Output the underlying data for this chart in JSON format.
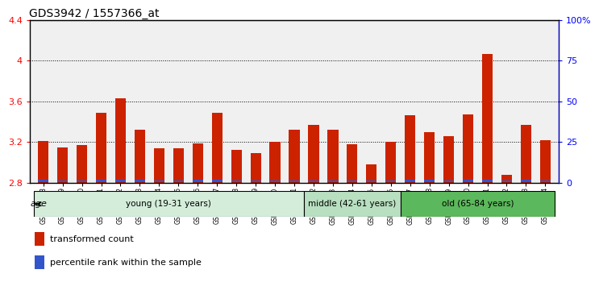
{
  "title": "GDS3942 / 1557366_at",
  "samples": [
    "GSM812988",
    "GSM812989",
    "GSM812990",
    "GSM812991",
    "GSM812992",
    "GSM812993",
    "GSM812994",
    "GSM812995",
    "GSM812996",
    "GSM812997",
    "GSM812998",
    "GSM812999",
    "GSM813000",
    "GSM813001",
    "GSM813002",
    "GSM813003",
    "GSM813004",
    "GSM813005",
    "GSM813006",
    "GSM813007",
    "GSM813008",
    "GSM813009",
    "GSM813010",
    "GSM813011",
    "GSM813012",
    "GSM813013",
    "GSM813014"
  ],
  "red_values": [
    3.21,
    3.15,
    3.17,
    3.49,
    3.63,
    3.32,
    3.14,
    3.14,
    3.19,
    3.49,
    3.12,
    3.09,
    3.2,
    3.32,
    3.37,
    3.32,
    3.18,
    2.98,
    3.2,
    3.46,
    3.3,
    3.26,
    3.47,
    4.07,
    2.88,
    3.37,
    3.22
  ],
  "blue_heights": [
    0.022,
    0.018,
    0.02,
    0.025,
    0.025,
    0.022,
    0.02,
    0.018,
    0.022,
    0.022,
    0.015,
    0.015,
    0.018,
    0.02,
    0.018,
    0.018,
    0.018,
    0.015,
    0.018,
    0.025,
    0.022,
    0.02,
    0.022,
    0.022,
    0.02,
    0.022,
    0.018
  ],
  "base": 2.8,
  "ylim_left": [
    2.8,
    4.4
  ],
  "ylim_right": [
    0,
    100
  ],
  "yticks_left": [
    2.8,
    3.2,
    3.6,
    4.0,
    4.4
  ],
  "ytick_labels_left": [
    "2.8",
    "3.2",
    "3.6",
    "4",
    "4.4"
  ],
  "yticks_right": [
    0,
    25,
    50,
    75,
    100
  ],
  "ytick_labels_right": [
    "0",
    "25",
    "50",
    "75",
    "100%"
  ],
  "groups": [
    {
      "label": "young (19-31 years)",
      "start": 0,
      "end": 14,
      "color": "#d4edda"
    },
    {
      "label": "middle (42-61 years)",
      "start": 14,
      "end": 19,
      "color": "#b8dfc0"
    },
    {
      "label": "old (65-84 years)",
      "start": 19,
      "end": 27,
      "color": "#5cb85c"
    }
  ],
  "bar_color_red": "#cc2200",
  "bar_color_blue": "#3355cc",
  "legend_red": "transformed count",
  "legend_blue": "percentile rank within the sample",
  "age_label": "age",
  "title_fontsize": 10,
  "bar_width": 0.55
}
